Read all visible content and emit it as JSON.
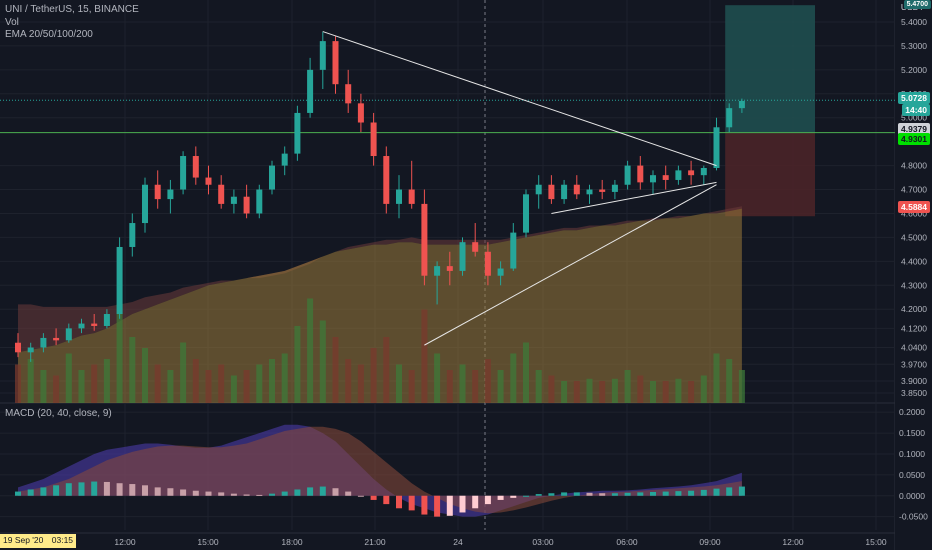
{
  "header": {
    "symbol_line": "UNI / TetherUS, 15, BINANCE",
    "vol_label": "Vol",
    "ema_label": "EMA 20/50/100/200",
    "macd_label": "MACD (20, 40, close, 9)"
  },
  "currency": "USDT",
  "price_tags": {
    "target": "5.4700",
    "last": "5.0728",
    "countdown": "14:40",
    "entry": "4.9379",
    "green": "4.9301",
    "stop": "4.5884"
  },
  "colors": {
    "background": "#131722",
    "up": "#26a69a",
    "down": "#ef5350",
    "grid": "#1e222d",
    "entry_line": "#4caf50",
    "profit_zone": "#1f4e4f",
    "loss_zone": "#4a2428",
    "ema_fill": "#9a7a3a"
  },
  "price_axis": {
    "ticks": [
      "5.4000",
      "5.3000",
      "5.2000",
      "5.1000",
      "5.0000",
      "4.8000",
      "4.7000",
      "4.6000",
      "4.5000",
      "4.4000",
      "4.3000",
      "4.2000",
      "4.1200",
      "4.0400",
      "3.9700",
      "3.9000",
      "3.8500"
    ]
  },
  "macd_axis": {
    "ticks": [
      "0.2000",
      "0.1500",
      "0.1000",
      "0.0500",
      "0.0000",
      "-0.0500"
    ]
  },
  "time_axis": {
    "date_tag": "19 Sep '20",
    "time_tag": "03:15",
    "labels": [
      "12:00",
      "15:00",
      "18:00",
      "21:00",
      "24",
      "03:00",
      "06:00",
      "09:00",
      "12:00",
      "15:00"
    ]
  },
  "chart_data": {
    "type": "candlestick",
    "price_series": [
      {
        "o": 4.06,
        "h": 4.1,
        "l": 4.0,
        "c": 4.02
      },
      {
        "o": 4.02,
        "h": 4.06,
        "l": 3.98,
        "c": 4.04
      },
      {
        "o": 4.04,
        "h": 4.1,
        "l": 4.02,
        "c": 4.08
      },
      {
        "o": 4.08,
        "h": 4.12,
        "l": 4.05,
        "c": 4.07
      },
      {
        "o": 4.07,
        "h": 4.14,
        "l": 4.06,
        "c": 4.12
      },
      {
        "o": 4.12,
        "h": 4.16,
        "l": 4.1,
        "c": 4.14
      },
      {
        "o": 4.14,
        "h": 4.18,
        "l": 4.11,
        "c": 4.13
      },
      {
        "o": 4.13,
        "h": 4.2,
        "l": 4.12,
        "c": 4.18
      },
      {
        "o": 4.18,
        "h": 4.5,
        "l": 4.16,
        "c": 4.46
      },
      {
        "o": 4.46,
        "h": 4.6,
        "l": 4.42,
        "c": 4.56
      },
      {
        "o": 4.56,
        "h": 4.75,
        "l": 4.52,
        "c": 4.72
      },
      {
        "o": 4.72,
        "h": 4.78,
        "l": 4.62,
        "c": 4.66
      },
      {
        "o": 4.66,
        "h": 4.74,
        "l": 4.6,
        "c": 4.7
      },
      {
        "o": 4.7,
        "h": 4.86,
        "l": 4.68,
        "c": 4.84
      },
      {
        "o": 4.84,
        "h": 4.88,
        "l": 4.72,
        "c": 4.75
      },
      {
        "o": 4.75,
        "h": 4.8,
        "l": 4.68,
        "c": 4.72
      },
      {
        "o": 4.72,
        "h": 4.76,
        "l": 4.62,
        "c": 4.64
      },
      {
        "o": 4.64,
        "h": 4.7,
        "l": 4.6,
        "c": 4.67
      },
      {
        "o": 4.67,
        "h": 4.72,
        "l": 4.58,
        "c": 4.6
      },
      {
        "o": 4.6,
        "h": 4.72,
        "l": 4.58,
        "c": 4.7
      },
      {
        "o": 4.7,
        "h": 4.82,
        "l": 4.68,
        "c": 4.8
      },
      {
        "o": 4.8,
        "h": 4.88,
        "l": 4.76,
        "c": 4.85
      },
      {
        "o": 4.85,
        "h": 5.05,
        "l": 4.82,
        "c": 5.02
      },
      {
        "o": 5.02,
        "h": 5.25,
        "l": 5.0,
        "c": 5.2
      },
      {
        "o": 5.2,
        "h": 5.36,
        "l": 5.12,
        "c": 5.32
      },
      {
        "o": 5.32,
        "h": 5.34,
        "l": 5.1,
        "c": 5.14
      },
      {
        "o": 5.14,
        "h": 5.2,
        "l": 5.02,
        "c": 5.06
      },
      {
        "o": 5.06,
        "h": 5.1,
        "l": 4.94,
        "c": 4.98
      },
      {
        "o": 4.98,
        "h": 5.02,
        "l": 4.8,
        "c": 4.84
      },
      {
        "o": 4.84,
        "h": 4.88,
        "l": 4.6,
        "c": 4.64
      },
      {
        "o": 4.64,
        "h": 4.76,
        "l": 4.58,
        "c": 4.7
      },
      {
        "o": 4.7,
        "h": 4.82,
        "l": 4.62,
        "c": 4.64
      },
      {
        "o": 4.64,
        "h": 4.7,
        "l": 4.3,
        "c": 4.34
      },
      {
        "o": 4.34,
        "h": 4.4,
        "l": 4.22,
        "c": 4.38
      },
      {
        "o": 4.38,
        "h": 4.44,
        "l": 4.3,
        "c": 4.36
      },
      {
        "o": 4.36,
        "h": 4.5,
        "l": 4.34,
        "c": 4.48
      },
      {
        "o": 4.48,
        "h": 4.56,
        "l": 4.42,
        "c": 4.44
      },
      {
        "o": 4.44,
        "h": 4.48,
        "l": 4.3,
        "c": 4.34
      },
      {
        "o": 4.34,
        "h": 4.4,
        "l": 4.3,
        "c": 4.37
      },
      {
        "o": 4.37,
        "h": 4.56,
        "l": 4.36,
        "c": 4.52
      },
      {
        "o": 4.52,
        "h": 4.7,
        "l": 4.5,
        "c": 4.68
      },
      {
        "o": 4.68,
        "h": 4.76,
        "l": 4.62,
        "c": 4.72
      },
      {
        "o": 4.72,
        "h": 4.76,
        "l": 4.64,
        "c": 4.66
      },
      {
        "o": 4.66,
        "h": 4.74,
        "l": 4.64,
        "c": 4.72
      },
      {
        "o": 4.72,
        "h": 4.76,
        "l": 4.66,
        "c": 4.68
      },
      {
        "o": 4.68,
        "h": 4.72,
        "l": 4.64,
        "c": 4.7
      },
      {
        "o": 4.7,
        "h": 4.74,
        "l": 4.66,
        "c": 4.69
      },
      {
        "o": 4.69,
        "h": 4.74,
        "l": 4.66,
        "c": 4.72
      },
      {
        "o": 4.72,
        "h": 4.82,
        "l": 4.7,
        "c": 4.8
      },
      {
        "o": 4.8,
        "h": 4.84,
        "l": 4.7,
        "c": 4.73
      },
      {
        "o": 4.73,
        "h": 4.78,
        "l": 4.68,
        "c": 4.76
      },
      {
        "o": 4.76,
        "h": 4.8,
        "l": 4.7,
        "c": 4.74
      },
      {
        "o": 4.74,
        "h": 4.8,
        "l": 4.72,
        "c": 4.78
      },
      {
        "o": 4.78,
        "h": 4.82,
        "l": 4.72,
        "c": 4.76
      },
      {
        "o": 4.76,
        "h": 4.8,
        "l": 4.72,
        "c": 4.79
      },
      {
        "o": 4.79,
        "h": 5.0,
        "l": 4.78,
        "c": 4.96
      },
      {
        "o": 4.96,
        "h": 5.06,
        "l": 4.94,
        "c": 5.04
      },
      {
        "o": 5.04,
        "h": 5.08,
        "l": 5.02,
        "c": 5.07
      }
    ],
    "volume": [
      0.35,
      0.4,
      0.3,
      0.25,
      0.45,
      0.3,
      0.35,
      0.4,
      0.9,
      0.6,
      0.5,
      0.35,
      0.3,
      0.55,
      0.4,
      0.3,
      0.35,
      0.25,
      0.3,
      0.35,
      0.4,
      0.45,
      0.7,
      0.95,
      0.75,
      0.6,
      0.4,
      0.35,
      0.5,
      0.6,
      0.35,
      0.3,
      0.85,
      0.45,
      0.3,
      0.35,
      0.3,
      0.4,
      0.3,
      0.45,
      0.55,
      0.3,
      0.25,
      0.2,
      0.2,
      0.22,
      0.2,
      0.22,
      0.3,
      0.25,
      0.2,
      0.2,
      0.22,
      0.2,
      0.25,
      0.45,
      0.4,
      0.3
    ],
    "macd_hist": [
      0.01,
      0.015,
      0.02,
      0.025,
      0.03,
      0.032,
      0.034,
      0.033,
      0.03,
      0.028,
      0.025,
      0.02,
      0.018,
      0.015,
      0.012,
      0.01,
      0.008,
      0.005,
      0.003,
      0.002,
      0.005,
      0.01,
      0.015,
      0.02,
      0.022,
      0.018,
      0.01,
      0.0,
      -0.01,
      -0.02,
      -0.03,
      -0.035,
      -0.045,
      -0.05,
      -0.048,
      -0.04,
      -0.03,
      -0.02,
      -0.01,
      -0.005,
      0.0,
      0.004,
      0.006,
      0.008,
      0.008,
      0.007,
      0.006,
      0.006,
      0.007,
      0.008,
      0.009,
      0.01,
      0.011,
      0.012,
      0.014,
      0.017,
      0.02,
      0.022
    ],
    "macd_line": [
      0.02,
      0.03,
      0.04,
      0.055,
      0.07,
      0.085,
      0.1,
      0.11,
      0.115,
      0.12,
      0.125,
      0.125,
      0.122,
      0.118,
      0.115,
      0.115,
      0.12,
      0.13,
      0.14,
      0.15,
      0.16,
      0.17,
      0.17,
      0.165,
      0.15,
      0.13,
      0.1,
      0.07,
      0.04,
      0.015,
      -0.005,
      -0.02,
      -0.03,
      -0.04,
      -0.045,
      -0.05,
      -0.05,
      -0.045,
      -0.035,
      -0.025,
      -0.015,
      -0.005,
      0.0,
      0.005,
      0.008,
      0.01,
      0.012,
      0.012,
      0.013,
      0.015,
      0.018,
      0.02,
      0.022,
      0.025,
      0.03,
      0.035,
      0.045,
      0.055
    ],
    "signal_line": [
      0.01,
      0.015,
      0.02,
      0.03,
      0.04,
      0.055,
      0.07,
      0.085,
      0.095,
      0.105,
      0.112,
      0.118,
      0.12,
      0.12,
      0.118,
      0.116,
      0.116,
      0.12,
      0.125,
      0.135,
      0.145,
      0.155,
      0.16,
      0.165,
      0.165,
      0.16,
      0.15,
      0.13,
      0.105,
      0.08,
      0.055,
      0.03,
      0.01,
      -0.005,
      -0.02,
      -0.03,
      -0.038,
      -0.042,
      -0.04,
      -0.035,
      -0.028,
      -0.02,
      -0.012,
      -0.005,
      0.0,
      0.004,
      0.007,
      0.009,
      0.01,
      0.012,
      0.014,
      0.016,
      0.018,
      0.02,
      0.022,
      0.025,
      0.03,
      0.035
    ],
    "ema_upper": [
      4.22,
      4.22,
      4.21,
      4.21,
      4.21,
      4.21,
      4.21,
      4.21,
      4.22,
      4.23,
      4.25,
      4.26,
      4.27,
      4.29,
      4.3,
      4.31,
      4.32,
      4.32,
      4.33,
      4.33,
      4.34,
      4.35,
      4.37,
      4.39,
      4.42,
      4.44,
      4.46,
      4.47,
      4.48,
      4.49,
      4.49,
      4.5,
      4.49,
      4.49,
      4.49,
      4.49,
      4.49,
      4.49,
      4.49,
      4.5,
      4.51,
      4.52,
      4.53,
      4.54,
      4.54,
      4.55,
      4.55,
      4.56,
      4.57,
      4.57,
      4.58,
      4.58,
      4.59,
      4.59,
      4.6,
      4.61,
      4.62,
      4.63
    ],
    "ema_lower": [
      4.02,
      4.03,
      4.04,
      4.05,
      4.07,
      4.09,
      4.1,
      4.12,
      4.15,
      4.18,
      4.2,
      4.22,
      4.24,
      4.26,
      4.28,
      4.3,
      4.31,
      4.32,
      4.33,
      4.34,
      4.35,
      4.36,
      4.38,
      4.4,
      4.42,
      4.44,
      4.45,
      4.46,
      4.47,
      4.47,
      4.48,
      4.48,
      4.47,
      4.47,
      4.47,
      4.47,
      4.47,
      4.47,
      4.48,
      4.49,
      4.5,
      4.51,
      4.52,
      4.53,
      4.53,
      4.54,
      4.55,
      4.55,
      4.56,
      4.57,
      4.57,
      4.58,
      4.58,
      4.59,
      4.6,
      4.6,
      4.61,
      4.62
    ],
    "trend_lines": [
      {
        "from": [
          24,
          5.36
        ],
        "to": [
          55,
          4.8
        ]
      },
      {
        "from": [
          32,
          4.05
        ],
        "to": [
          55,
          4.72
        ]
      },
      {
        "from": [
          42,
          4.6
        ],
        "to": [
          55,
          4.73
        ]
      }
    ],
    "position": {
      "entry": 4.9379,
      "target": 5.47,
      "stop": 4.5884,
      "start_index": 56
    },
    "ylim": [
      3.85,
      5.45
    ],
    "macd_ylim": [
      -0.07,
      0.21
    ]
  }
}
